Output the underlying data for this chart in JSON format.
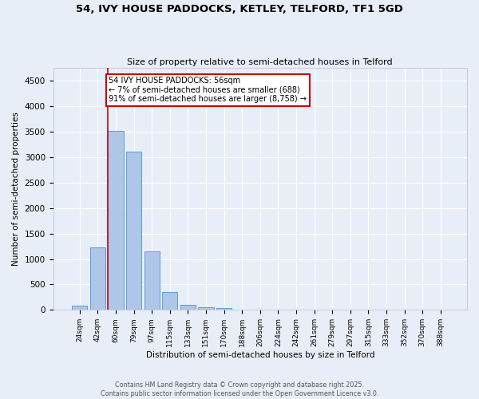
{
  "title": "54, IVY HOUSE PADDOCKS, KETLEY, TELFORD, TF1 5GD",
  "subtitle": "Size of property relative to semi-detached houses in Telford",
  "xlabel": "Distribution of semi-detached houses by size in Telford",
  "ylabel": "Number of semi-detached properties",
  "bar_labels": [
    "24sqm",
    "42sqm",
    "60sqm",
    "79sqm",
    "97sqm",
    "115sqm",
    "133sqm",
    "151sqm",
    "170sqm",
    "188sqm",
    "206sqm",
    "224sqm",
    "242sqm",
    "261sqm",
    "279sqm",
    "297sqm",
    "315sqm",
    "333sqm",
    "352sqm",
    "370sqm",
    "388sqm"
  ],
  "bar_values": [
    80,
    1220,
    3520,
    3110,
    1150,
    350,
    100,
    55,
    30,
    10,
    5,
    0,
    0,
    0,
    0,
    0,
    0,
    0,
    0,
    0,
    0
  ],
  "bar_color": "#aec6e8",
  "bar_edge_color": "#5a9fd4",
  "vline_bin_index": 2,
  "annotation_title": "54 IVY HOUSE PADDOCKS: 56sqm",
  "annotation_line1": "← 7% of semi-detached houses are smaller (688)",
  "annotation_line2": "91% of semi-detached houses are larger (8,758) →",
  "annotation_box_color": "#ffffff",
  "annotation_box_edge": "#cc0000",
  "vline_color": "#cc0000",
  "background_color": "#e8eef8",
  "grid_color": "#ffffff",
  "ylim": [
    0,
    4750
  ],
  "yticks": [
    0,
    500,
    1000,
    1500,
    2000,
    2500,
    3000,
    3500,
    4000,
    4500
  ],
  "footer_line1": "Contains HM Land Registry data © Crown copyright and database right 2025.",
  "footer_line2": "Contains public sector information licensed under the Open Government Licence v3.0."
}
